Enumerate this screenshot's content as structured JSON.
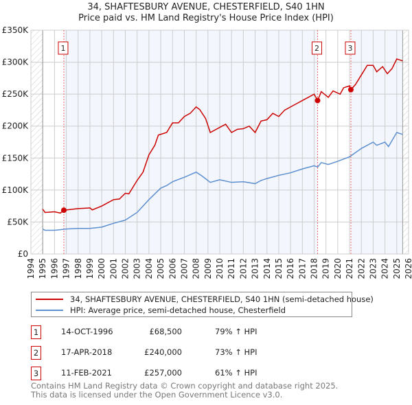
{
  "chart_data": {
    "type": "line",
    "title": "34, SHAFTESBURY AVENUE, CHESTERFIELD, S40 1HN",
    "subtitle": "Price paid vs. HM Land Registry's House Price Index (HPI)",
    "xlim": [
      1994,
      2026
    ],
    "ylim": [
      0,
      350000
    ],
    "x_ticks": [
      "1994",
      "1995",
      "1996",
      "1997",
      "1998",
      "1999",
      "2000",
      "2001",
      "2002",
      "2003",
      "2004",
      "2005",
      "2006",
      "2007",
      "2008",
      "2009",
      "2010",
      "2011",
      "2012",
      "2013",
      "2014",
      "2015",
      "2016",
      "2017",
      "2018",
      "2019",
      "2020",
      "2021",
      "2022",
      "2023",
      "2024",
      "2025",
      "2026"
    ],
    "y_ticks": [
      {
        "v": 0,
        "label": "£0"
      },
      {
        "v": 50000,
        "label": "£50K"
      },
      {
        "v": 100000,
        "label": "£100K"
      },
      {
        "v": 150000,
        "label": "£150K"
      },
      {
        "v": 200000,
        "label": "£200K"
      },
      {
        "v": 250000,
        "label": "£250K"
      },
      {
        "v": 300000,
        "label": "£300K"
      },
      {
        "v": 350000,
        "label": "£350K"
      }
    ],
    "data_range": [
      1995,
      2025.5
    ],
    "series": [
      {
        "name": "34, SHAFTESBURY AVENUE, CHESTERFIELD, S40 1HN (semi-detached house)",
        "color": "#cc0000",
        "points": [
          [
            1995,
            70
          ],
          [
            1995.2,
            65
          ],
          [
            1996,
            66
          ],
          [
            1996.5,
            64
          ],
          [
            1996.79,
            68.5
          ],
          [
            1998,
            71
          ],
          [
            1999,
            72
          ],
          [
            1999.2,
            69
          ],
          [
            2000,
            75
          ],
          [
            2001,
            85
          ],
          [
            2001.5,
            86
          ],
          [
            2002,
            95
          ],
          [
            2002.3,
            94
          ],
          [
            2003,
            115
          ],
          [
            2003.5,
            128
          ],
          [
            2004,
            155
          ],
          [
            2004.5,
            170
          ],
          [
            2004.8,
            186
          ],
          [
            2005.5,
            190
          ],
          [
            2006,
            205
          ],
          [
            2006.5,
            205
          ],
          [
            2007,
            215
          ],
          [
            2007.5,
            220
          ],
          [
            2008,
            230
          ],
          [
            2008.3,
            226
          ],
          [
            2008.8,
            212
          ],
          [
            2009.2,
            190
          ],
          [
            2009.5,
            193
          ],
          [
            2010,
            198
          ],
          [
            2010.5,
            203
          ],
          [
            2011,
            190
          ],
          [
            2011.5,
            195
          ],
          [
            2012,
            196
          ],
          [
            2012.5,
            200
          ],
          [
            2013,
            190
          ],
          [
            2013.5,
            208
          ],
          [
            2014,
            210
          ],
          [
            2014.5,
            220
          ],
          [
            2015,
            215
          ],
          [
            2015.5,
            225
          ],
          [
            2016,
            230
          ],
          [
            2016.5,
            235
          ],
          [
            2017,
            240
          ],
          [
            2017.5,
            245
          ],
          [
            2018,
            250
          ],
          [
            2018.3,
            240
          ],
          [
            2018.6,
            254
          ],
          [
            2019.2,
            245
          ],
          [
            2019.6,
            255
          ],
          [
            2020.2,
            250
          ],
          [
            2020.5,
            260
          ],
          [
            2021,
            263
          ],
          [
            2021.11,
            257
          ],
          [
            2021.5,
            265
          ],
          [
            2022,
            280
          ],
          [
            2022.5,
            295
          ],
          [
            2023,
            295
          ],
          [
            2023.3,
            285
          ],
          [
            2023.8,
            293
          ],
          [
            2024.2,
            282
          ],
          [
            2024.6,
            290
          ],
          [
            2025,
            305
          ],
          [
            2025.5,
            302
          ]
        ]
      },
      {
        "name": "HPI: Average price, semi-detached house, Chesterfield",
        "color": "#5b8fd0",
        "points": [
          [
            1995,
            39
          ],
          [
            1995.2,
            37
          ],
          [
            1996,
            37
          ],
          [
            1997,
            39
          ],
          [
            1998,
            40
          ],
          [
            1999,
            40
          ],
          [
            2000,
            42
          ],
          [
            2001,
            48
          ],
          [
            2002,
            53
          ],
          [
            2003,
            65
          ],
          [
            2004,
            85
          ],
          [
            2005,
            103
          ],
          [
            2005.5,
            107
          ],
          [
            2006,
            113
          ],
          [
            2007,
            120
          ],
          [
            2008,
            128
          ],
          [
            2008.5,
            122
          ],
          [
            2009.2,
            112
          ],
          [
            2010,
            116
          ],
          [
            2011,
            112
          ],
          [
            2012,
            113
          ],
          [
            2013,
            110
          ],
          [
            2013.5,
            115
          ],
          [
            2014,
            118
          ],
          [
            2015,
            123
          ],
          [
            2016,
            127
          ],
          [
            2017,
            133
          ],
          [
            2018,
            138
          ],
          [
            2018.3,
            136
          ],
          [
            2018.6,
            143
          ],
          [
            2019.2,
            140
          ],
          [
            2020,
            145
          ],
          [
            2021,
            152
          ],
          [
            2022,
            165
          ],
          [
            2023,
            175
          ],
          [
            2023.3,
            170
          ],
          [
            2024,
            175
          ],
          [
            2024.3,
            168
          ],
          [
            2025,
            190
          ],
          [
            2025.5,
            187
          ]
        ]
      }
    ],
    "sales": [
      {
        "label": "1",
        "x": 1996.79,
        "value": 68500,
        "date": "14-OCT-1996",
        "price": "£68,500",
        "hpi": "79% ↑ HPI"
      },
      {
        "label": "2",
        "x": 2018.29,
        "value": 240000,
        "date": "17-APR-2018",
        "price": "£240,000",
        "hpi": "73% ↑ HPI"
      },
      {
        "label": "3",
        "x": 2021.11,
        "value": 257000,
        "date": "11-FEB-2021",
        "price": "£257,000",
        "hpi": "61% ↑ HPI"
      }
    ],
    "legend_position": "below"
  },
  "footer": {
    "line1": "Contains HM Land Registry data © Crown copyright and database right 2025.",
    "line2": "This data is licensed under the Open Government Licence v3.0."
  }
}
